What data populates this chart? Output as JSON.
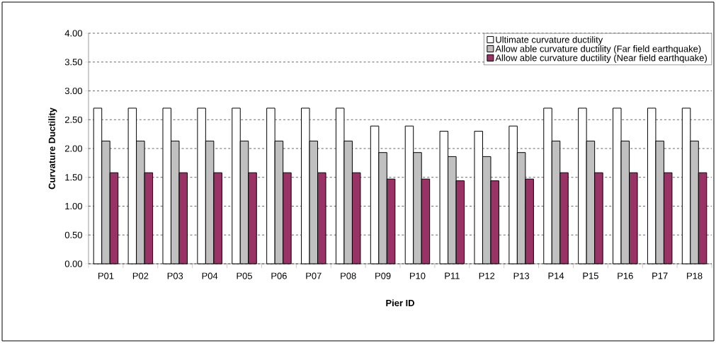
{
  "chart_data": {
    "type": "bar",
    "xlabel": "Pier ID",
    "ylabel": "Curvature Ductility",
    "categories": [
      "P01",
      "P02",
      "P03",
      "P04",
      "P05",
      "P06",
      "P07",
      "P08",
      "P09",
      "P10",
      "P11",
      "P12",
      "P13",
      "P14",
      "P15",
      "P16",
      "P17",
      "P18"
    ],
    "series": [
      {
        "name": "Ultimate curvature ductility",
        "color": "#ffffff",
        "values": [
          2.7,
          2.7,
          2.7,
          2.7,
          2.7,
          2.7,
          2.7,
          2.7,
          2.39,
          2.39,
          2.3,
          2.3,
          2.39,
          2.7,
          2.7,
          2.7,
          2.7,
          2.7
        ]
      },
      {
        "name": "Allow able curvature ductility (Far field earthquake)",
        "color": "#c0c0c0",
        "values": [
          2.13,
          2.13,
          2.13,
          2.13,
          2.13,
          2.13,
          2.13,
          2.13,
          1.93,
          1.93,
          1.86,
          1.86,
          1.93,
          2.13,
          2.13,
          2.13,
          2.13,
          2.13
        ]
      },
      {
        "name": "Allow able curvature ductility (Near field earthquake)",
        "color": "#993366",
        "values": [
          1.58,
          1.58,
          1.58,
          1.58,
          1.58,
          1.58,
          1.58,
          1.58,
          1.47,
          1.47,
          1.44,
          1.44,
          1.47,
          1.58,
          1.58,
          1.58,
          1.58,
          1.58
        ]
      }
    ],
    "ylim": [
      0,
      4
    ],
    "yticks": [
      {
        "value": 0,
        "label": "0.00"
      },
      {
        "value": 0.5,
        "label": "0.50"
      },
      {
        "value": 1,
        "label": "1.00"
      },
      {
        "value": 1.5,
        "label": "1.50"
      },
      {
        "value": 2,
        "label": "2.00"
      },
      {
        "value": 2.5,
        "label": "2.50"
      },
      {
        "value": 3,
        "label": "3.00"
      },
      {
        "value": 3.5,
        "label": "3.50"
      },
      {
        "value": 4,
        "label": "4.00"
      }
    ],
    "grid": "y",
    "legend": "top right"
  }
}
